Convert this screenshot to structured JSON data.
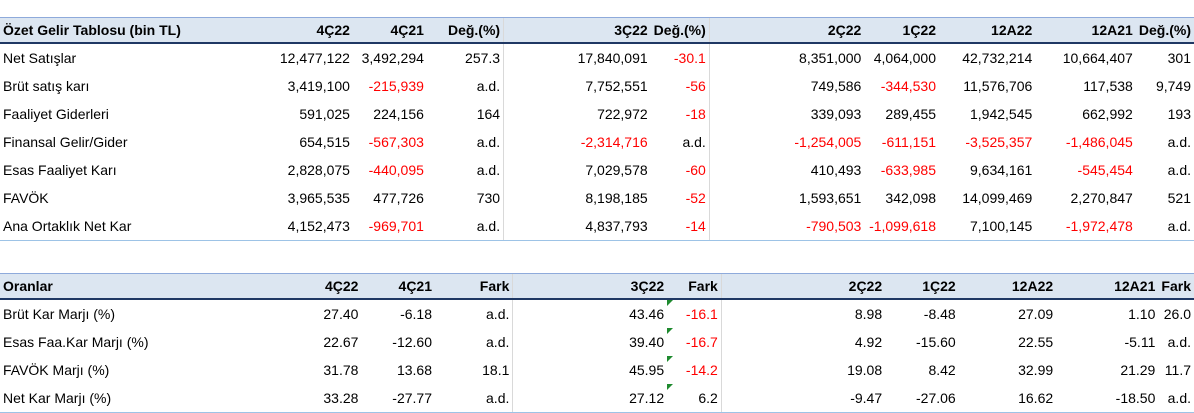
{
  "table1": {
    "headers": [
      "Özet Gelir Tablosu (bin TL)",
      "4Ç22",
      "4Ç21",
      "Değ.(%)",
      "3Ç22",
      "Değ.(%)",
      "2Ç22",
      "1Ç22",
      "12A22",
      "12A21",
      "Değ.(%)"
    ],
    "rows": [
      {
        "label": "Net Satışlar",
        "values": [
          "12,477,122",
          "3,492,294",
          "257.3",
          "17,840,091",
          "-30.1",
          "8,351,000",
          "4,064,000",
          "42,732,214",
          "10,664,407",
          "301"
        ]
      },
      {
        "label": "Brüt satış karı",
        "values": [
          "3,419,100",
          "-215,939",
          "a.d.",
          "7,752,551",
          "-56",
          "749,586",
          "-344,530",
          "11,576,706",
          "117,538",
          "9,749"
        ]
      },
      {
        "label": "Faaliyet Giderleri",
        "values": [
          "591,025",
          "224,156",
          "164",
          "722,972",
          "-18",
          "339,093",
          "289,455",
          "1,942,545",
          "662,992",
          "193"
        ]
      },
      {
        "label": "Finansal Gelir/Gider",
        "values": [
          "654,515",
          "-567,303",
          "a.d.",
          "-2,314,716",
          "a.d.",
          "-1,254,005",
          "-611,151",
          "-3,525,357",
          "-1,486,045",
          "a.d."
        ]
      },
      {
        "label": "Esas Faaliyet Karı",
        "values": [
          "2,828,075",
          "-440,095",
          "a.d.",
          "7,029,578",
          "-60",
          "410,493",
          "-633,985",
          "9,634,161",
          "-545,454",
          "a.d."
        ]
      },
      {
        "label": "FAVÖK",
        "values": [
          "3,965,535",
          "477,726",
          "730",
          "8,198,185",
          "-52",
          "1,593,651",
          "342,098",
          "14,099,469",
          "2,270,847",
          "521"
        ]
      },
      {
        "label": "Ana Ortaklık Net Kar",
        "values": [
          "4,152,473",
          "-969,701",
          "a.d.",
          "4,837,793",
          "-14",
          "-790,503",
          "-1,099,618",
          "7,100,145",
          "-1,972,478",
          "a.d."
        ]
      }
    ]
  },
  "table2": {
    "headers": [
      "Oranlar",
      "4Ç22",
      "4Ç21",
      "Fark",
      "3Ç22",
      "Fark",
      "2Ç22",
      "1Ç22",
      "12A22",
      "12A21",
      "Fark"
    ],
    "rows": [
      {
        "label": "Brüt Kar Marjı (%)",
        "values": [
          "27.40",
          "-6.18",
          "a.d.",
          "43.46",
          "-16.1",
          "8.98",
          "-8.48",
          "27.09",
          "1.10",
          "26.0"
        ]
      },
      {
        "label": "Esas Faa.Kar Marjı (%)",
        "values": [
          "22.67",
          "-12.60",
          "a.d.",
          "39.40",
          "-16.7",
          "4.92",
          "-15.60",
          "22.55",
          "-5.11",
          "a.d."
        ]
      },
      {
        "label": "FAVÖK Marjı (%)",
        "values": [
          "31.78",
          "13.68",
          "18.1",
          "45.95",
          "-14.2",
          "19.08",
          "8.42",
          "32.99",
          "21.29",
          "11.7"
        ]
      },
      {
        "label": "Net Kar Marjı (%)",
        "values": [
          "33.28",
          "-27.77",
          "a.d.",
          "27.12",
          "6.2",
          "-9.47",
          "-27.06",
          "16.62",
          "-18.50",
          "a.d."
        ]
      }
    ]
  },
  "colors": {
    "header_bg": "#dce6f1",
    "negative": "#ff0000",
    "corner_mark": "#1e8a2e"
  }
}
